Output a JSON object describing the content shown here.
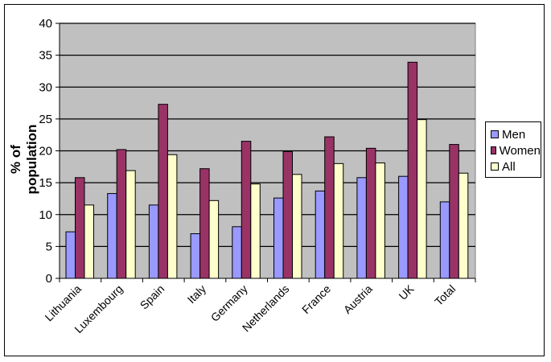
{
  "chart_data": {
    "type": "bar",
    "title": "",
    "xlabel": "",
    "ylabel": "% of population",
    "ylim": [
      0,
      40
    ],
    "yticks": [
      0,
      5,
      10,
      15,
      20,
      25,
      30,
      35,
      40
    ],
    "grid": true,
    "legend_position": "right",
    "categories": [
      "Lithuania",
      "Luxembourg",
      "Spain",
      "Italy",
      "Germany",
      "Netherlands",
      "France",
      "Austria",
      "UK",
      "Total"
    ],
    "series": [
      {
        "name": "Men",
        "color": "#9999ff",
        "values": [
          7.3,
          13.3,
          11.5,
          7.0,
          8.1,
          12.6,
          13.7,
          15.8,
          16.0,
          12.0
        ]
      },
      {
        "name": "Women",
        "color": "#993366",
        "values": [
          15.8,
          20.2,
          27.3,
          17.2,
          21.5,
          19.9,
          22.2,
          20.4,
          33.9,
          21.0
        ]
      },
      {
        "name": "All",
        "color": "#ffffcc",
        "values": [
          11.5,
          16.9,
          19.4,
          12.2,
          14.8,
          16.3,
          18.0,
          18.1,
          24.9,
          16.5
        ]
      }
    ]
  },
  "colors": {
    "plot_bg": "#c0c0c0",
    "grid": "#000000"
  }
}
